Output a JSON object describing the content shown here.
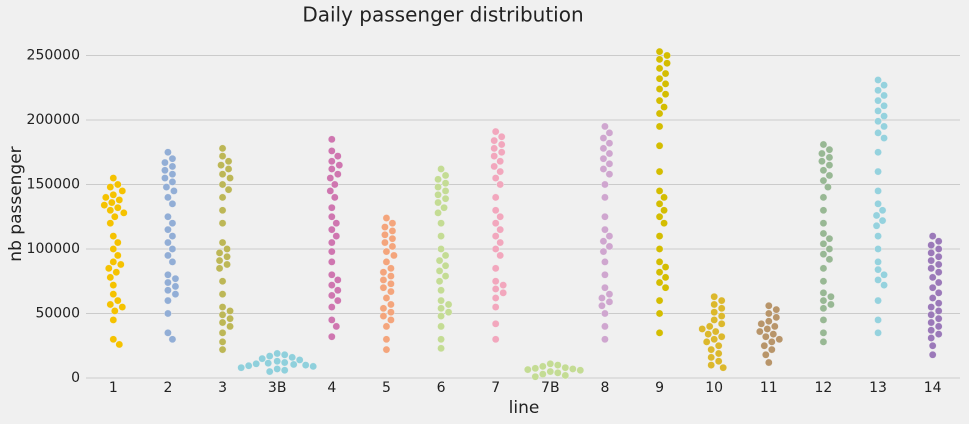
{
  "chart_data": {
    "type": "swarm",
    "title": "Daily passenger distribution",
    "x_label": "line",
    "y_label": "nb passenger",
    "categories": [
      "1",
      "2",
      "3",
      "3B",
      "4",
      "5",
      "6",
      "7",
      "7B",
      "8",
      "9",
      "10",
      "11",
      "12",
      "13",
      "14"
    ],
    "colors": [
      "#f5c200",
      "#92aed6",
      "#bdb756",
      "#8fd0dc",
      "#cf76b0",
      "#f4a57c",
      "#c4dc94",
      "#f2a7bd",
      "#c4dc94",
      "#cfa6cf",
      "#d4bd00",
      "#dcb82c",
      "#b8956a",
      "#98b894",
      "#95d2de",
      "#9b79b9"
    ],
    "values": [
      [
        155000,
        150000,
        148000,
        145000,
        142000,
        140000,
        138000,
        136000,
        134000,
        132000,
        130000,
        128000,
        125000,
        120000,
        110000,
        105000,
        100000,
        95000,
        90000,
        88000,
        85000,
        82000,
        78000,
        72000,
        65000,
        60000,
        57000,
        55000,
        52000,
        45000,
        30000,
        26000
      ],
      [
        175000,
        170000,
        167000,
        164000,
        161000,
        158000,
        155000,
        152000,
        148000,
        145000,
        140000,
        135000,
        125000,
        120000,
        115000,
        110000,
        105000,
        100000,
        95000,
        90000,
        80000,
        77000,
        74000,
        71000,
        68000,
        65000,
        60000,
        50000,
        35000,
        30000
      ],
      [
        178000,
        172000,
        168000,
        165000,
        162000,
        158000,
        155000,
        150000,
        146000,
        140000,
        130000,
        120000,
        105000,
        100000,
        97000,
        94000,
        91000,
        88000,
        85000,
        75000,
        65000,
        55000,
        52000,
        49000,
        46000,
        43000,
        40000,
        35000,
        28000,
        22000
      ],
      [
        19000,
        18000,
        17000,
        16000,
        15000,
        14000,
        13000,
        12000,
        11500,
        11000,
        10500,
        10000,
        9500,
        9000,
        8000,
        7000,
        6000,
        5000
      ],
      [
        185000,
        176000,
        172000,
        168000,
        165000,
        162000,
        158000,
        155000,
        150000,
        145000,
        140000,
        132000,
        125000,
        120000,
        115000,
        110000,
        105000,
        98000,
        90000,
        80000,
        76000,
        72000,
        68000,
        64000,
        60000,
        55000,
        45000,
        40000,
        32000
      ],
      [
        124000,
        120000,
        117000,
        114000,
        111000,
        108000,
        105000,
        102000,
        98000,
        95000,
        90000,
        85000,
        82000,
        79000,
        76000,
        73000,
        70000,
        67000,
        62000,
        57000,
        54000,
        51000,
        48000,
        45000,
        40000,
        30000,
        22000
      ],
      [
        162000,
        157000,
        154000,
        151000,
        148000,
        145000,
        142000,
        139000,
        136000,
        132000,
        128000,
        120000,
        110000,
        100000,
        95000,
        91000,
        87000,
        83000,
        79000,
        75000,
        68000,
        60000,
        57000,
        54000,
        51000,
        48000,
        40000,
        30000,
        23000
      ],
      [
        191000,
        187000,
        184000,
        181000,
        178000,
        175000,
        172000,
        168000,
        164000,
        160000,
        155000,
        150000,
        140000,
        130000,
        125000,
        120000,
        115000,
        110000,
        105000,
        100000,
        95000,
        85000,
        75000,
        72000,
        69000,
        66000,
        62000,
        55000,
        42000,
        30000
      ],
      [
        11000,
        10000,
        9000,
        8000,
        7500,
        7000,
        6500,
        6000,
        5000,
        4000,
        3000,
        2000,
        1000
      ],
      [
        195000,
        190000,
        186000,
        182000,
        178000,
        174000,
        170000,
        166000,
        162000,
        158000,
        150000,
        140000,
        125000,
        115000,
        110000,
        106000,
        102000,
        98000,
        90000,
        80000,
        70000,
        65000,
        62000,
        59000,
        56000,
        50000,
        40000,
        30000
      ],
      [
        253000,
        250000,
        247000,
        244000,
        240000,
        236000,
        232000,
        228000,
        224000,
        220000,
        215000,
        210000,
        205000,
        195000,
        180000,
        160000,
        145000,
        140000,
        135000,
        130000,
        125000,
        120000,
        110000,
        100000,
        90000,
        86000,
        82000,
        78000,
        74000,
        70000,
        60000,
        50000,
        35000
      ],
      [
        63000,
        60000,
        57000,
        54000,
        51000,
        48000,
        45000,
        42000,
        40000,
        38000,
        36000,
        34000,
        32000,
        30000,
        28000,
        25000,
        22000,
        19000,
        16000,
        13000,
        10000,
        8000
      ],
      [
        56000,
        53000,
        50000,
        47000,
        44000,
        42000,
        40000,
        38000,
        36000,
        34000,
        32000,
        30000,
        28000,
        25000,
        22000,
        18000,
        12000
      ],
      [
        181000,
        177000,
        174000,
        171000,
        168000,
        165000,
        161000,
        157000,
        153000,
        148000,
        140000,
        130000,
        120000,
        112000,
        108000,
        104000,
        100000,
        96000,
        92000,
        85000,
        75000,
        66000,
        63000,
        60000,
        57000,
        54000,
        45000,
        35000,
        28000
      ],
      [
        231000,
        227000,
        223000,
        219000,
        215000,
        211000,
        207000,
        203000,
        199000,
        195000,
        190000,
        186000,
        175000,
        160000,
        145000,
        135000,
        130000,
        126000,
        122000,
        118000,
        110000,
        100000,
        90000,
        84000,
        80000,
        76000,
        72000,
        60000,
        45000,
        35000
      ],
      [
        110000,
        106000,
        103000,
        100000,
        97000,
        94000,
        91000,
        88000,
        85000,
        82000,
        78000,
        74000,
        70000,
        66000,
        62000,
        58000,
        55000,
        52000,
        49000,
        46000,
        43000,
        40000,
        37000,
        34000,
        31000,
        25000,
        18000
      ]
    ],
    "ylim": [
      0,
      262000
    ],
    "yticks": [
      0,
      50000,
      100000,
      150000,
      200000,
      250000
    ],
    "grid": true
  }
}
